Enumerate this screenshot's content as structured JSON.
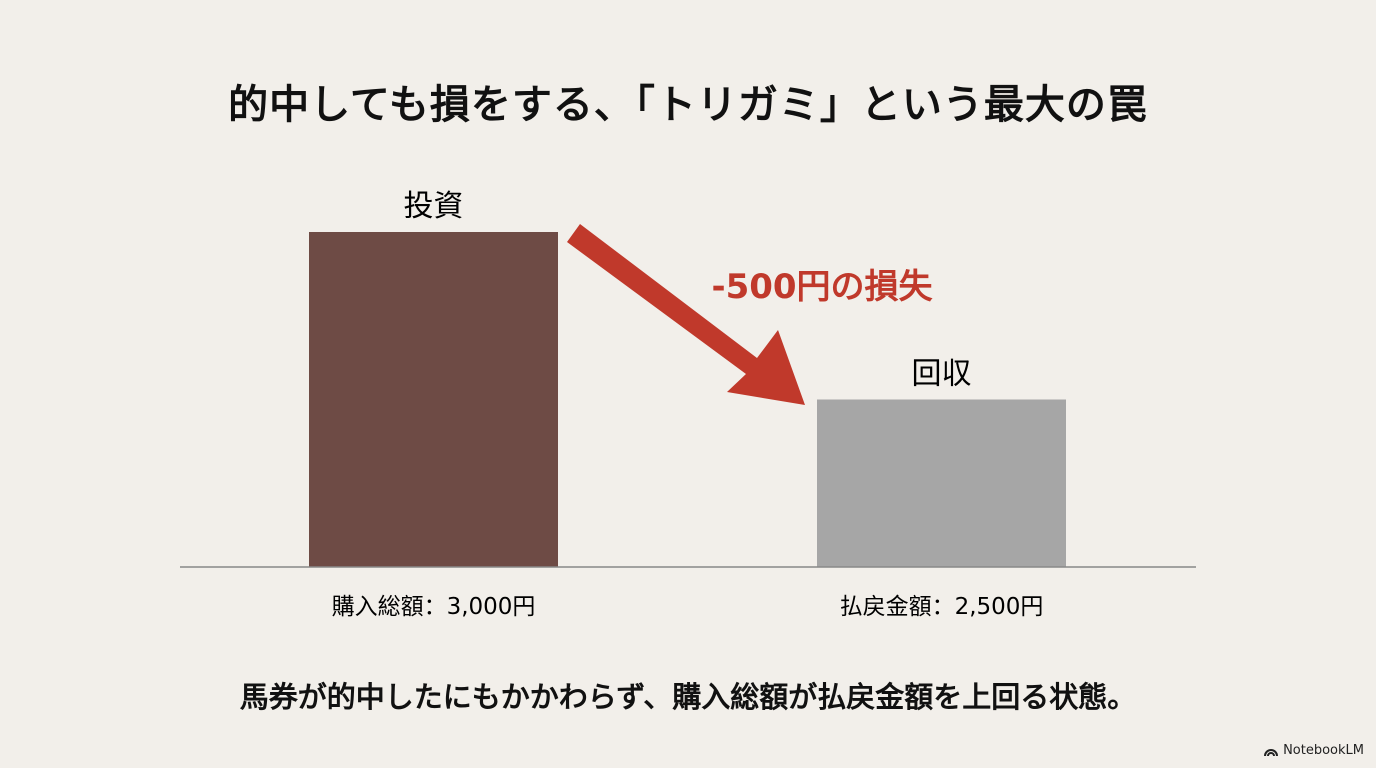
{
  "title": "的中しても損をする、「トリガミ」という最大の罠",
  "chart_data": {
    "type": "bar",
    "categories": [
      "購入総額：3,000円",
      "払戻金額：2,500円"
    ],
    "bar_labels": [
      "投資",
      "回収"
    ],
    "values": [
      3000,
      2500
    ],
    "ylim": [
      2000,
      3000
    ],
    "grid": false,
    "colors": [
      "#6e4b45",
      "#a6a6a6"
    ],
    "annotation": "-500円の損失",
    "annotation_color": "#c0392b"
  },
  "caption": "馬券が的中したにもかかわらず、購入総額が払戻金額を上回る状態。",
  "brand": {
    "label": "NotebookLM",
    "icon": "notebooklm-logo-icon"
  }
}
